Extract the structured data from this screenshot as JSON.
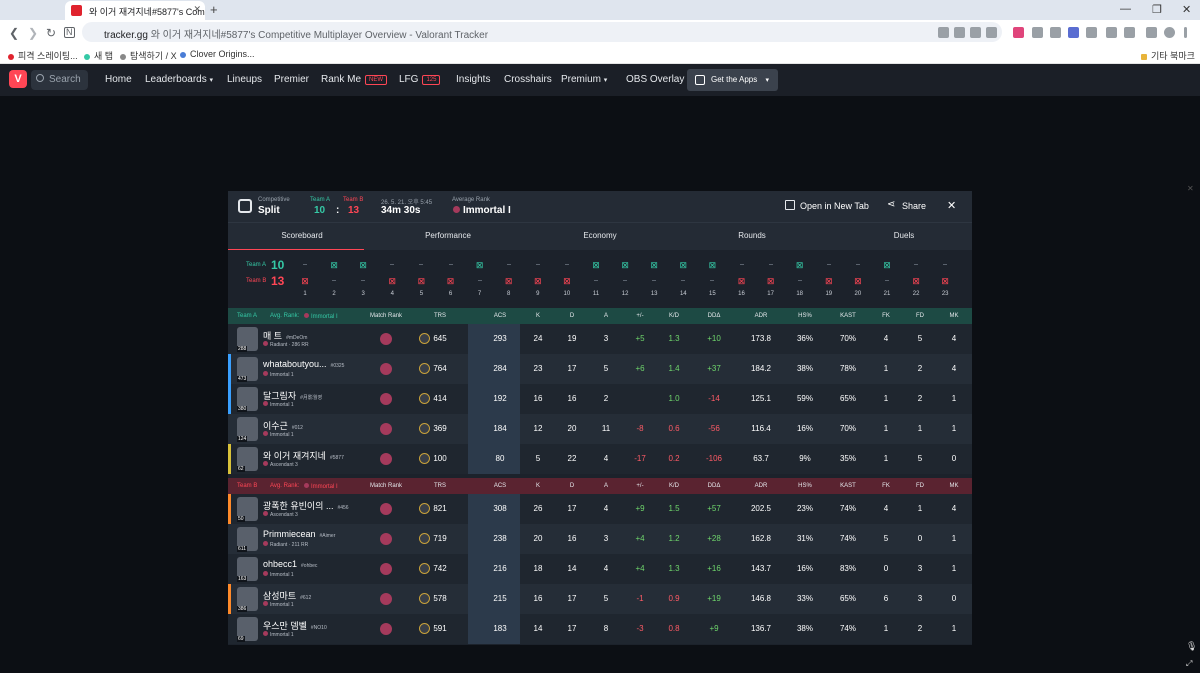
{
  "browser": {
    "tab_title": "와 이거 재겨지네#5877's Comp",
    "url_domain": "tracker.gg",
    "url_rest": "와 이거 재겨지네#5877's Competitive Multiplayer Overview - Valorant Tracker",
    "bookmarks": [
      "피격 스레이팅...",
      "새 탭",
      "탐색하기 / X",
      "Clover Origins..."
    ],
    "bookmarks_other": "기타 북마크"
  },
  "nav": {
    "search_placeholder": "Search",
    "items": [
      "Home",
      "Leaderboards",
      "Lineups",
      "Premier",
      "Rank Me",
      "LFG",
      "Insights",
      "Crosshairs",
      "Premium",
      "OBS Overlay"
    ],
    "rank_me_badge": "NEW",
    "lfg_badge": "125",
    "get_apps": "Get the Apps"
  },
  "match": {
    "mode": "Competitive",
    "map": "Split",
    "team_a_label": "Team A",
    "team_b_label": "Team B",
    "score_a": "10",
    "score_sep": ":",
    "score_b": "13",
    "date": "26. 5. 21. 오후 5:45",
    "duration": "34m 30s",
    "avg_rank_label": "Average Rank",
    "avg_rank": "Immortal I",
    "open_new_tab": "Open in New Tab",
    "share": "Share"
  },
  "tabs": [
    "Scoreboard",
    "Performance",
    "Economy",
    "Rounds",
    "Duels"
  ],
  "timeline": {
    "team_a_label": "Team A",
    "team_b_label": "Team B",
    "team_a_score": "10",
    "team_b_score": "13",
    "winners": [
      "B",
      "A",
      "A",
      "B",
      "B",
      "B",
      "A",
      "B",
      "B",
      "B",
      "A",
      "A",
      "A",
      "A",
      "A",
      "B",
      "B",
      "A",
      "B",
      "B",
      "A",
      "B",
      "B"
    ],
    "round_numbers": [
      "1",
      "2",
      "3",
      "4",
      "5",
      "6",
      "7",
      "8",
      "9",
      "10",
      "11",
      "12",
      "13",
      "14",
      "15",
      "16",
      "17",
      "18",
      "19",
      "20",
      "21",
      "22",
      "23"
    ]
  },
  "columns": [
    "Match Rank",
    "TRS",
    "ACS",
    "K",
    "D",
    "A",
    "+/-",
    "K/D",
    "DDΔ",
    "ADR",
    "HS%",
    "KAST",
    "FK",
    "FD",
    "MK"
  ],
  "team_a_header": {
    "team": "Team A",
    "avg_label": "Avg. Rank:",
    "avg_rank": "Immortal I"
  },
  "team_b_header": {
    "team": "Team B",
    "avg_label": "Avg. Rank:",
    "avg_rank": "Immortal I"
  },
  "team_a_players": [
    {
      "level": "288",
      "name": "매 트",
      "tag": "#mDeOm",
      "rank": "Radiant · 286 RR",
      "trs": "645",
      "acs": "293",
      "k": "24",
      "d": "19",
      "a": "3",
      "pm": "+5",
      "kd": "1.3",
      "dd": "+10",
      "adr": "173.8",
      "hs": "36%",
      "kast": "70%",
      "fk": "4",
      "fd": "5",
      "mk": "4"
    },
    {
      "level": "473",
      "name": "whataboutyou...",
      "tag": "#0325",
      "rank": "Immortal 1",
      "trs": "764",
      "acs": "284",
      "k": "23",
      "d": "17",
      "a": "5",
      "pm": "+6",
      "kd": "1.4",
      "dd": "+37",
      "adr": "184.2",
      "hs": "38%",
      "kast": "78%",
      "fk": "1",
      "fd": "2",
      "mk": "4"
    },
    {
      "level": "380",
      "name": "달그림자",
      "tag": "#月影월영",
      "rank": "Immortal 1",
      "trs": "414",
      "acs": "192",
      "k": "16",
      "d": "16",
      "a": "2",
      "pm": "",
      "kd": "1.0",
      "dd": "-14",
      "adr": "125.1",
      "hs": "59%",
      "kast": "65%",
      "fk": "1",
      "fd": "2",
      "mk": "1"
    },
    {
      "level": "124",
      "name": "이수근",
      "tag": "#012",
      "rank": "Immortal 1",
      "trs": "369",
      "acs": "184",
      "k": "12",
      "d": "20",
      "a": "11",
      "pm": "-8",
      "kd": "0.6",
      "dd": "-56",
      "adr": "116.4",
      "hs": "16%",
      "kast": "70%",
      "fk": "1",
      "fd": "1",
      "mk": "1"
    },
    {
      "level": "62",
      "name": "와 이거 재겨지네",
      "tag": "#5877",
      "rank": "Ascendant 3",
      "trs": "100",
      "acs": "80",
      "k": "5",
      "d": "22",
      "a": "4",
      "pm": "-17",
      "kd": "0.2",
      "dd": "-106",
      "adr": "63.7",
      "hs": "9%",
      "kast": "35%",
      "fk": "1",
      "fd": "5",
      "mk": "0"
    }
  ],
  "team_b_players": [
    {
      "level": "50",
      "name": "광폭한 유빈이의 ...",
      "tag": "#456",
      "rank": "Ascendant 3",
      "trs": "821",
      "acs": "308",
      "k": "26",
      "d": "17",
      "a": "4",
      "pm": "+9",
      "kd": "1.5",
      "dd": "+57",
      "adr": "202.5",
      "hs": "23%",
      "kast": "74%",
      "fk": "4",
      "fd": "1",
      "mk": "4"
    },
    {
      "level": "611",
      "name": "Primmiecean",
      "tag": "#Aimer",
      "rank": "Radiant · 211 RR",
      "trs": "719",
      "acs": "238",
      "k": "20",
      "d": "16",
      "a": "3",
      "pm": "+4",
      "kd": "1.2",
      "dd": "+28",
      "adr": "162.8",
      "hs": "31%",
      "kast": "74%",
      "fk": "5",
      "fd": "0",
      "mk": "1"
    },
    {
      "level": "163",
      "name": "ohbecc1",
      "tag": "#ohbec",
      "rank": "Immortal 1",
      "trs": "742",
      "acs": "216",
      "k": "18",
      "d": "14",
      "a": "4",
      "pm": "+4",
      "kd": "1.3",
      "dd": "+16",
      "adr": "143.7",
      "hs": "16%",
      "kast": "83%",
      "fk": "0",
      "fd": "3",
      "mk": "1"
    },
    {
      "level": "386",
      "name": "삼성마트",
      "tag": "#612",
      "rank": "Immortal 1",
      "trs": "578",
      "acs": "215",
      "k": "16",
      "d": "17",
      "a": "5",
      "pm": "-1",
      "kd": "0.9",
      "dd": "+19",
      "adr": "146.8",
      "hs": "33%",
      "kast": "65%",
      "fk": "6",
      "fd": "3",
      "mk": "0"
    },
    {
      "level": "69",
      "name": "우스만 뎀벨",
      "tag": "#NO10",
      "rank": "Immortal 1",
      "trs": "591",
      "acs": "183",
      "k": "14",
      "d": "17",
      "a": "8",
      "pm": "-3",
      "kd": "0.8",
      "dd": "+9",
      "adr": "136.7",
      "hs": "38%",
      "kast": "74%",
      "fk": "1",
      "fd": "2",
      "mk": "1"
    }
  ],
  "colors": {
    "accent": "#ff4655",
    "team_a": "#35c9a6",
    "team_b": "#ff4655",
    "positive": "#6fd66c",
    "negative": "#ff5b66"
  }
}
